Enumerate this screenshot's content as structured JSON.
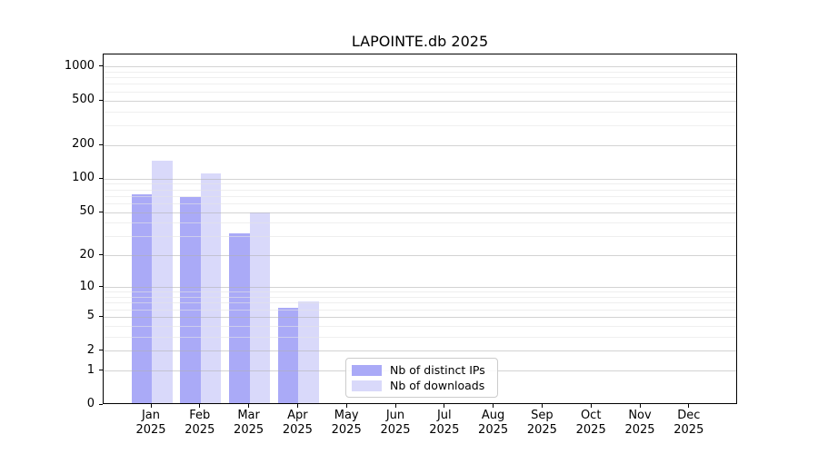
{
  "chart_data": {
    "type": "bar",
    "title": "LAPOINTE.db 2025",
    "categories": [
      "Jan 2025",
      "Feb 2025",
      "Mar 2025",
      "Apr 2025",
      "May 2025",
      "Jun 2025",
      "Jul 2025",
      "Aug 2025",
      "Sep 2025",
      "Oct 2025",
      "Nov 2025",
      "Dec 2025"
    ],
    "series": [
      {
        "name": "Nb of distinct IPs",
        "color": "#aaaaf7",
        "values": [
          70,
          67,
          31,
          6,
          0,
          0,
          0,
          0,
          0,
          0,
          0,
          0
        ]
      },
      {
        "name": "Nb of downloads",
        "color": "#d9d9fa",
        "values": [
          140,
          108,
          48,
          7,
          0,
          0,
          0,
          0,
          0,
          0,
          0,
          0
        ]
      }
    ],
    "xlabel": "",
    "ylabel": "",
    "yscale": "log1p",
    "yticks": [
      0,
      1,
      2,
      5,
      10,
      20,
      50,
      100,
      200,
      500,
      1000
    ],
    "ylim": [
      0,
      1300
    ],
    "grid": true,
    "legend_position": "inside-bottom-center"
  },
  "colors": {
    "axis": "#000000",
    "grid_major": "#d0d0d0",
    "grid_minor": "#efefef",
    "background": "#ffffff"
  }
}
